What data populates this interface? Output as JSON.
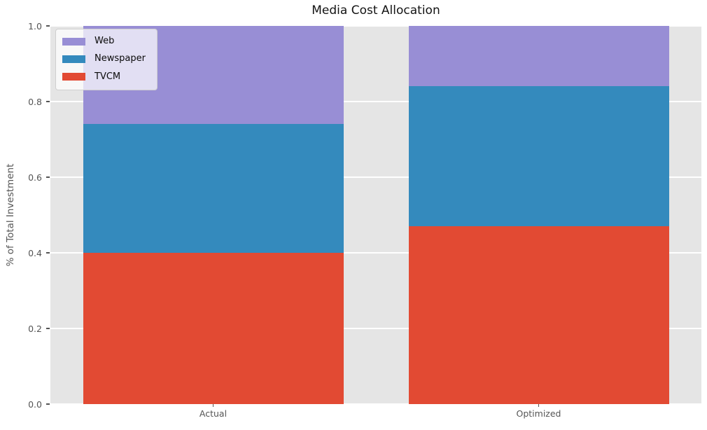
{
  "chart_data": {
    "type": "bar",
    "stacked": true,
    "title": "Media Cost Allocation",
    "xlabel": "",
    "ylabel": "% of Total Investment",
    "categories": [
      "Actual",
      "Optimized"
    ],
    "series": [
      {
        "name": "TVCM",
        "color": "#E24A33",
        "values": [
          0.4,
          0.47
        ]
      },
      {
        "name": "Newspaper",
        "color": "#348ABD",
        "values": [
          0.34,
          0.37
        ]
      },
      {
        "name": "Web",
        "color": "#988ED5",
        "values": [
          0.26,
          0.16
        ]
      }
    ],
    "ylim": [
      0.0,
      1.0
    ],
    "yticks": [
      0.0,
      0.2,
      0.4,
      0.6,
      0.8,
      1.0
    ],
    "ytick_labels": [
      "0.0",
      "0.2",
      "0.4",
      "0.6",
      "0.8",
      "1.0"
    ],
    "bar_width_fraction": 0.8,
    "grid": true,
    "legend": {
      "position": "upper left",
      "order": [
        "Web",
        "Newspaper",
        "TVCM"
      ]
    },
    "style": {
      "plot_background": "#E5E5E5",
      "grid_color": "#FFFFFF",
      "tick_text_color": "#555555",
      "title_color": "#141414",
      "legend_text_color": "#0A0A0A"
    }
  }
}
